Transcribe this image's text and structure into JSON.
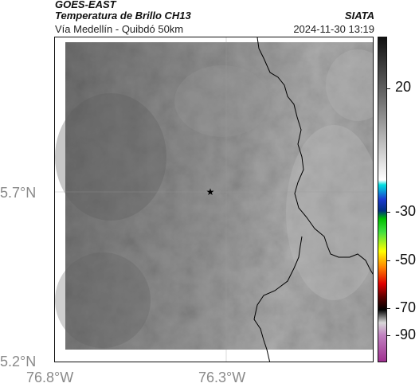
{
  "header": {
    "satellite": "GOES-EAST",
    "product": "Temperatura de Brillo CH13",
    "region": "Vía Medellín - Quibdó 50km",
    "source": "SIATA",
    "timestamp": "2024-11-30 13:19"
  },
  "axes": {
    "y_ticks": [
      {
        "label": "5.7°N",
        "value": 5.7
      },
      {
        "label": "5.2°N",
        "value": 5.2
      }
    ],
    "x_ticks": [
      {
        "label": "76.8°W",
        "value": -76.8
      },
      {
        "label": "76.3°W",
        "value": -76.3
      }
    ]
  },
  "colorbar": {
    "ticks": [
      {
        "label": "20",
        "value": 20
      },
      {
        "label": "-30",
        "value": -30
      },
      {
        "label": "-50",
        "value": -50
      },
      {
        "label": "-70",
        "value": -70
      },
      {
        "label": "-90",
        "value": -90
      }
    ]
  },
  "marker": {
    "symbol": "★"
  },
  "colors": {
    "land_dark": "#6e6e6e",
    "land_mid": "#8c8c8c",
    "land_light": "#b4b4b4",
    "boundary": "#000000",
    "grid": "#999999"
  }
}
